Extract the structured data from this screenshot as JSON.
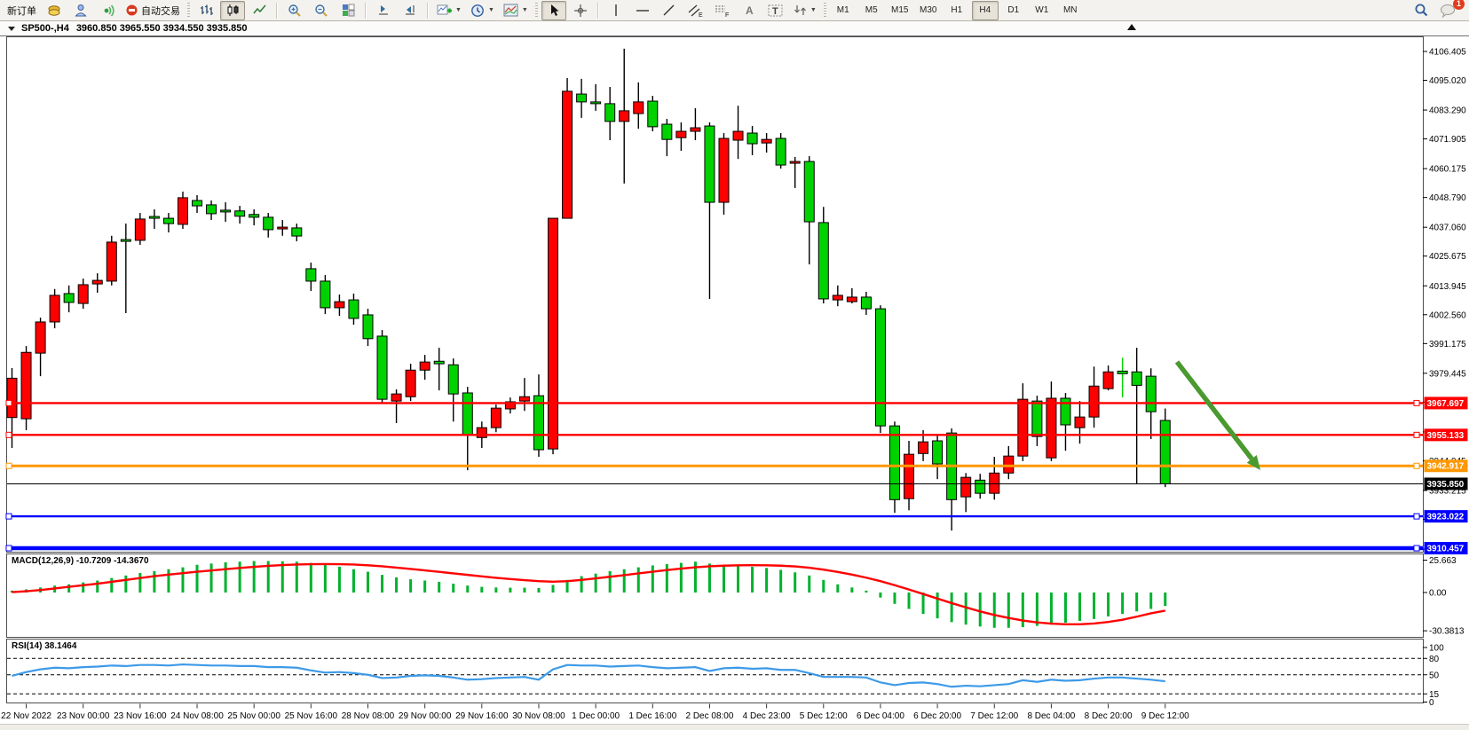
{
  "toolbar": {
    "new_order": "新订单",
    "autotrading": "自动交易",
    "timeframes": [
      "M1",
      "M5",
      "M15",
      "M30",
      "H1",
      "H4",
      "D1",
      "W1",
      "MN"
    ],
    "timeframe_active": "H4",
    "notification_count": "1"
  },
  "caption": {
    "symbol_period": "SP500-,H4",
    "ohlc": "3960.850 3965.550 3934.550 3935.850"
  },
  "indicators": {
    "macd_name": "MACD(12,26,9)",
    "macd_main": "-10.7209",
    "macd_signal": "-14.3670",
    "rsi_name": "RSI(14)",
    "rsi_value": "38.1464"
  },
  "chart_data": {
    "type": "candlestick",
    "symbol": "SP500-",
    "period": "H4",
    "up_color": "#fe0000",
    "down_color": "#00d200",
    "last_ohlc": {
      "open": 3960.85,
      "high": 3965.55,
      "low": 3934.55,
      "close": 3935.85
    },
    "price_axis_ticks": [
      4106.405,
      4095.02,
      4083.29,
      4071.905,
      4060.175,
      4048.79,
      4037.06,
      4025.675,
      4013.945,
      4002.56,
      3991.175,
      3979.445,
      3968.06,
      3956.33,
      3944.945,
      3933.215,
      3921.83,
      3910.1
    ],
    "time_labels": [
      "22 Nov 2022",
      "23 Nov 00:00",
      "23 Nov 16:00",
      "24 Nov 08:00",
      "25 Nov 00:00",
      "25 Nov 16:00",
      "28 Nov 08:00",
      "29 Nov 00:00",
      "29 Nov 16:00",
      "30 Nov 08:00",
      "1 Dec 00:00",
      "1 Dec 16:00",
      "2 Dec 08:00",
      "4 Dec 23:00",
      "5 Dec 12:00",
      "6 Dec 04:00",
      "6 Dec 20:00",
      "7 Dec 12:00",
      "8 Dec 04:00",
      "8 Dec 20:00",
      "9 Dec 12:00"
    ],
    "candles": [
      [
        3962.0,
        3981.5,
        3950.0,
        3977.5
      ],
      [
        3961.5,
        3990.2,
        3957.0,
        3987.7
      ],
      [
        3987.4,
        4001.4,
        3978.3,
        3999.7
      ],
      [
        3999.7,
        4012.7,
        3997.2,
        4010.2
      ],
      [
        4010.9,
        4014.1,
        4003.5,
        4007.4
      ],
      [
        4007.0,
        4016.8,
        4004.9,
        4014.4
      ],
      [
        4014.7,
        4018.9,
        4011.2,
        4016.1
      ],
      [
        4015.8,
        4033.7,
        4014.1,
        4031.2
      ],
      [
        4032.2,
        4038.5,
        4003.2,
        4031.5
      ],
      [
        4031.9,
        4042.7,
        4030.1,
        4040.3
      ],
      [
        4041.3,
        4044.1,
        4036.4,
        4040.6
      ],
      [
        4040.6,
        4042.7,
        4035.0,
        4038.5
      ],
      [
        4038.2,
        4051.1,
        4036.4,
        4048.7
      ],
      [
        4047.6,
        4049.7,
        4042.7,
        4045.5
      ],
      [
        4045.9,
        4047.6,
        4039.9,
        4042.4
      ],
      [
        4043.8,
        4046.9,
        4039.2,
        4043.1
      ],
      [
        4043.5,
        4045.5,
        4038.5,
        4041.4
      ],
      [
        4042.1,
        4044.1,
        4037.8,
        4041.0
      ],
      [
        4041.0,
        4042.7,
        4033.0,
        4036.1
      ],
      [
        4036.4,
        4039.9,
        4033.7,
        4037.1
      ],
      [
        4036.8,
        4038.5,
        4031.5,
        4033.6
      ],
      [
        4020.7,
        4023.1,
        4011.9,
        4015.8
      ],
      [
        4015.8,
        4018.2,
        4002.8,
        4005.3
      ],
      [
        4005.3,
        4010.5,
        4002.1,
        4007.7
      ],
      [
        4008.4,
        4010.9,
        3998.6,
        4001.1
      ],
      [
        4002.5,
        4004.9,
        3990.2,
        3993.1
      ],
      [
        3994.1,
        3996.5,
        3967.5,
        3969.2
      ],
      [
        3968.5,
        3973.1,
        3959.8,
        3971.3
      ],
      [
        3970.2,
        3983.2,
        3968.5,
        3980.7
      ],
      [
        3980.7,
        3986.7,
        3976.9,
        3983.9
      ],
      [
        3984.2,
        3989.5,
        3972.7,
        3983.2
      ],
      [
        3982.8,
        3985.3,
        3960.4,
        3971.3
      ],
      [
        3971.7,
        3974.1,
        3941.2,
        3955.2
      ],
      [
        3954.1,
        3960.4,
        3950.0,
        3958.0
      ],
      [
        3958.0,
        3967.1,
        3956.2,
        3965.7
      ],
      [
        3965.4,
        3969.9,
        3963.6,
        3968.2
      ],
      [
        3968.5,
        3977.6,
        3964.6,
        3970.2
      ],
      [
        3970.6,
        3979.0,
        3946.5,
        3949.3
      ],
      [
        3949.6,
        4040.6,
        3947.5,
        4040.6
      ],
      [
        4040.6,
        4095.9,
        4040.6,
        4090.7
      ],
      [
        4089.6,
        4095.6,
        4080.2,
        4086.5
      ],
      [
        4086.5,
        4093.5,
        4083.0,
        4085.8
      ],
      [
        4085.8,
        4092.4,
        4071.4,
        4078.8
      ],
      [
        4078.8,
        4107.5,
        4054.3,
        4083.0
      ],
      [
        4081.9,
        4094.2,
        4075.9,
        4086.5
      ],
      [
        4086.8,
        4088.9,
        4074.9,
        4076.7
      ],
      [
        4077.7,
        4079.8,
        4065.1,
        4071.7
      ],
      [
        4072.4,
        4078.4,
        4067.2,
        4074.9
      ],
      [
        4074.9,
        4084.0,
        4071.4,
        4076.3
      ],
      [
        4077.0,
        4078.4,
        4008.8,
        4046.9
      ],
      [
        4046.9,
        4074.2,
        4042.0,
        4072.1
      ],
      [
        4071.4,
        4085.0,
        4064.0,
        4074.9
      ],
      [
        4074.2,
        4077.0,
        4065.5,
        4070.0
      ],
      [
        4070.3,
        4074.2,
        4066.5,
        4071.7
      ],
      [
        4072.1,
        4074.2,
        4060.2,
        4061.6
      ],
      [
        4062.3,
        4064.8,
        4052.5,
        4063.0
      ],
      [
        4063.0,
        4065.1,
        4022.4,
        4039.2
      ],
      [
        4038.9,
        4045.1,
        4007.0,
        4008.8
      ],
      [
        4008.4,
        4014.1,
        4005.9,
        4010.2
      ],
      [
        4007.7,
        4013.0,
        4007.0,
        4009.5
      ],
      [
        4009.5,
        4011.6,
        4002.5,
        4004.9
      ],
      [
        4004.9,
        4006.3,
        3955.9,
        3958.7
      ],
      [
        3958.7,
        3960.4,
        3924.4,
        3929.6
      ],
      [
        3930.0,
        3952.8,
        3925.4,
        3947.5
      ],
      [
        3947.8,
        3957.0,
        3944.8,
        3952.4
      ],
      [
        3952.8,
        3955.2,
        3937.7,
        3943.7
      ],
      [
        3955.9,
        3957.7,
        3917.4,
        3929.6
      ],
      [
        3930.7,
        3940.1,
        3924.7,
        3938.4
      ],
      [
        3937.3,
        3939.8,
        3930.0,
        3932.1
      ],
      [
        3932.1,
        3946.5,
        3929.6,
        3940.1
      ],
      [
        3940.1,
        3950.7,
        3937.7,
        3946.8
      ],
      [
        3946.8,
        3975.5,
        3944.8,
        3969.2
      ],
      [
        3968.5,
        3970.6,
        3950.7,
        3954.5
      ],
      [
        3946.1,
        3976.2,
        3944.8,
        3969.6
      ],
      [
        3969.6,
        3971.7,
        3948.9,
        3959.1
      ],
      [
        3958.0,
        3968.5,
        3951.7,
        3962.2
      ],
      [
        3962.2,
        3982.1,
        3958.0,
        3974.4
      ],
      [
        3973.4,
        3982.5,
        3972.7,
        3980.0
      ],
      [
        3980.3,
        3985.6,
        3969.9,
        3979.3,
        1
      ],
      [
        3980.0,
        3989.5,
        3935.9,
        3974.7
      ],
      [
        3978.3,
        3981.4,
        3953.5,
        3964.3
      ],
      [
        3960.85,
        3965.55,
        3934.55,
        3935.85
      ]
    ],
    "hlines": [
      {
        "price": 3967.697,
        "label": "3967.697",
        "color": "#ff0000",
        "width": 2.4
      },
      {
        "price": 3955.133,
        "label": "3955.133",
        "color": "#ff0000",
        "width": 2.4
      },
      {
        "price": 3942.917,
        "label": "3942.917",
        "color": "#ff9800",
        "width": 3
      },
      {
        "price": 3935.85,
        "label": "3935.850",
        "color": "#000000",
        "width": 1,
        "is_price": true
      },
      {
        "price": 3923.022,
        "label": "3923.022",
        "color": "#0000ff",
        "width": 2.4
      },
      {
        "price": 3910.457,
        "label": "3910.457",
        "color": "#0000ff",
        "width": 4.5
      }
    ],
    "arrow": {
      "from": [
        1326,
        408
      ],
      "to": [
        1420,
        530
      ],
      "color": "#4a9a2f"
    },
    "macd": {
      "axis_ticks": [
        {
          "v": 25.663,
          "label": "25.663"
        },
        {
          "v": 0,
          "label": "0.00"
        },
        {
          "v": -30.3813,
          "label": "-30.3813"
        }
      ],
      "hist_color": "#00b22d",
      "signal_color": "#ff0000",
      "hist": [
        1.5,
        2.5,
        4,
        5.5,
        6.5,
        8,
        9.5,
        11.5,
        13.5,
        15.5,
        17,
        18.5,
        20,
        22,
        23,
        24,
        24.5,
        25,
        25,
        24.8,
        24.5,
        23.5,
        22,
        20.5,
        18.5,
        16.5,
        14,
        12,
        10.5,
        9.5,
        8.5,
        7,
        5.5,
        4.5,
        4,
        3.8,
        3.8,
        3.5,
        6,
        10,
        13,
        15,
        17,
        18.5,
        20,
        21.5,
        22.5,
        23.5,
        24.5,
        23,
        22,
        21.5,
        20.5,
        19.5,
        18,
        16,
        13.5,
        10,
        6.5,
        4,
        1.5,
        -4,
        -9,
        -13,
        -17,
        -20.5,
        -23.5,
        -25.5,
        -27,
        -28,
        -28,
        -27.5,
        -26.5,
        -25.5,
        -24,
        -22.5,
        -21,
        -19,
        -17,
        -15,
        -13,
        -10.7
      ],
      "signal": [
        0.3,
        1,
        2,
        3.2,
        4.5,
        5.8,
        7,
        8.5,
        10,
        11.5,
        13,
        14.2,
        15.4,
        16.5,
        17.5,
        18.5,
        19.5,
        20.4,
        21.2,
        21.8,
        22.2,
        22.5,
        22.6,
        22.5,
        22.2,
        21.6,
        20.8,
        19.8,
        18.7,
        17.6,
        16.4,
        15.2,
        14,
        12.8,
        11.7,
        10.7,
        9.8,
        9,
        8.6,
        9,
        10,
        11.2,
        12.5,
        13.8,
        15.2,
        16.5,
        17.8,
        19,
        20,
        20.8,
        21.3,
        21.6,
        21.7,
        21.6,
        21.3,
        20.7,
        19.7,
        18.2,
        16.3,
        14.2,
        11.8,
        9,
        5.8,
        2.4,
        -1.2,
        -4.8,
        -8.4,
        -11.8,
        -15,
        -17.8,
        -20.2,
        -22.2,
        -23.7,
        -24.7,
        -25.2,
        -25.2,
        -24.6,
        -23.4,
        -21.6,
        -19.2,
        -16.5,
        -14.4
      ]
    },
    "rsi": {
      "axis_ticks": [
        {
          "v": 100,
          "label": "100"
        },
        {
          "v": 80,
          "label": "80"
        },
        {
          "v": 50,
          "label": "50"
        },
        {
          "v": 15,
          "label": "15"
        },
        {
          "v": 0,
          "label": "0"
        }
      ],
      "levels": [
        80,
        50,
        15
      ],
      "color": "#3d9ae8",
      "values": [
        48,
        55,
        60,
        63,
        62,
        64,
        65,
        67,
        66,
        68,
        68,
        67,
        69,
        68,
        67,
        67,
        66,
        66,
        64,
        64,
        63,
        58,
        54,
        55,
        53,
        50,
        44,
        45,
        48,
        49,
        48,
        45,
        41,
        42,
        44,
        45,
        46,
        41,
        60,
        68,
        67,
        67,
        65,
        66,
        67,
        64,
        62,
        63,
        64,
        57,
        62,
        63,
        61,
        62,
        59,
        59,
        53,
        46,
        46,
        46,
        45,
        36,
        31,
        35,
        36,
        33,
        28,
        30,
        29,
        31,
        33,
        40,
        37,
        41,
        39,
        40,
        43,
        45,
        45,
        43,
        41,
        38.1
      ]
    }
  }
}
